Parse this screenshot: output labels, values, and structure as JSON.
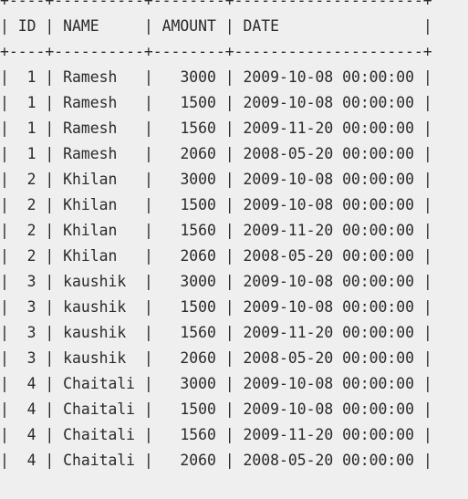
{
  "table": {
    "columns": [
      "ID",
      "NAME",
      "AMOUNT",
      "DATE"
    ],
    "rows": [
      [
        "1",
        "Ramesh",
        "3000",
        "2009-10-08 00:00:00"
      ],
      [
        "1",
        "Ramesh",
        "1500",
        "2009-10-08 00:00:00"
      ],
      [
        "1",
        "Ramesh",
        "1560",
        "2009-11-20 00:00:00"
      ],
      [
        "1",
        "Ramesh",
        "2060",
        "2008-05-20 00:00:00"
      ],
      [
        "2",
        "Khilan",
        "3000",
        "2009-10-08 00:00:00"
      ],
      [
        "2",
        "Khilan",
        "1500",
        "2009-10-08 00:00:00"
      ],
      [
        "2",
        "Khilan",
        "1560",
        "2009-11-20 00:00:00"
      ],
      [
        "2",
        "Khilan",
        "2060",
        "2008-05-20 00:00:00"
      ],
      [
        "3",
        "kaushik",
        "3000",
        "2009-10-08 00:00:00"
      ],
      [
        "3",
        "kaushik",
        "1500",
        "2009-10-08 00:00:00"
      ],
      [
        "3",
        "kaushik",
        "1560",
        "2009-11-20 00:00:00"
      ],
      [
        "3",
        "kaushik",
        "2060",
        "2008-05-20 00:00:00"
      ],
      [
        "4",
        "Chaitali",
        "3000",
        "2009-10-08 00:00:00"
      ],
      [
        "4",
        "Chaitali",
        "1500",
        "2009-10-08 00:00:00"
      ],
      [
        "4",
        "Chaitali",
        "1560",
        "2009-11-20 00:00:00"
      ],
      [
        "4",
        "Chaitali",
        "2060",
        "2008-05-20 00:00:00"
      ]
    ]
  }
}
